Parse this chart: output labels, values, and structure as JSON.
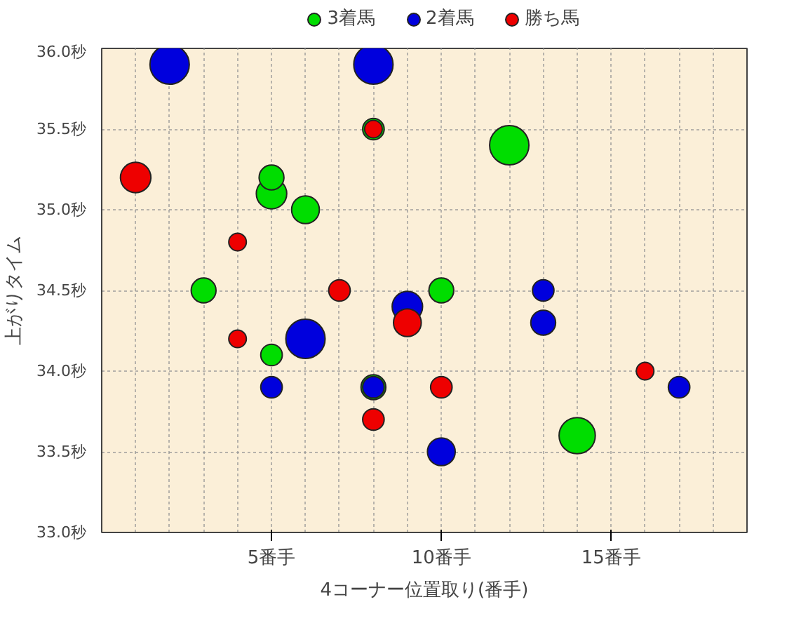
{
  "chart_data": {
    "type": "bubble",
    "xlabel": "4コーナー位置取り(番手)",
    "ylabel": "上がりタイム",
    "xlim": [
      0,
      19
    ],
    "xticks": [
      {
        "value": 5,
        "label": "5番手"
      },
      {
        "value": 10,
        "label": "10番手"
      },
      {
        "value": 15,
        "label": "15番手"
      }
    ],
    "ylim": [
      33.0,
      36.0
    ],
    "yticks": [
      {
        "value": 33.0,
        "label": "33.0秒"
      },
      {
        "value": 33.5,
        "label": "33.5秒"
      },
      {
        "value": 34.0,
        "label": "34.0秒"
      },
      {
        "value": 34.5,
        "label": "34.5秒"
      },
      {
        "value": 35.0,
        "label": "35.0秒"
      },
      {
        "value": 35.5,
        "label": "35.5秒"
      },
      {
        "value": 36.0,
        "label": "36.0秒"
      }
    ],
    "grid": true,
    "legend": "top",
    "series": [
      {
        "name": "3着馬",
        "color": "#00dd00",
        "x": [
          5,
          5,
          6,
          3,
          5,
          8,
          10,
          12,
          14,
          8
        ],
        "values": [
          35.1,
          35.2,
          35.0,
          34.5,
          34.1,
          33.9,
          34.5,
          35.4,
          33.6,
          35.5
        ],
        "sizes": [
          0.6,
          0.4,
          0.5,
          0.4,
          0.3,
          0.4,
          0.4,
          1,
          0.85,
          0.3
        ]
      },
      {
        "name": "2着馬",
        "color": "#0000dd",
        "x": [
          2,
          8,
          6,
          9,
          5,
          8,
          10,
          13,
          13,
          17
        ],
        "values": [
          35.9,
          35.9,
          34.2,
          34.4,
          33.9,
          33.9,
          33.5,
          34.5,
          34.3,
          33.9
        ],
        "sizes": [
          1,
          1,
          1,
          0.6,
          0.3,
          0.3,
          0.5,
          0.3,
          0.4,
          0.3
        ]
      },
      {
        "name": "勝ち馬",
        "color": "#ee0000",
        "x": [
          1,
          8,
          4,
          7,
          4,
          9,
          8,
          10,
          16
        ],
        "values": [
          35.2,
          35.5,
          34.8,
          34.5,
          34.2,
          34.3,
          33.7,
          33.9,
          34.0
        ],
        "sizes": [
          0.6,
          0.2,
          0.2,
          0.3,
          0.2,
          0.5,
          0.3,
          0.3,
          0.2
        ]
      }
    ]
  }
}
